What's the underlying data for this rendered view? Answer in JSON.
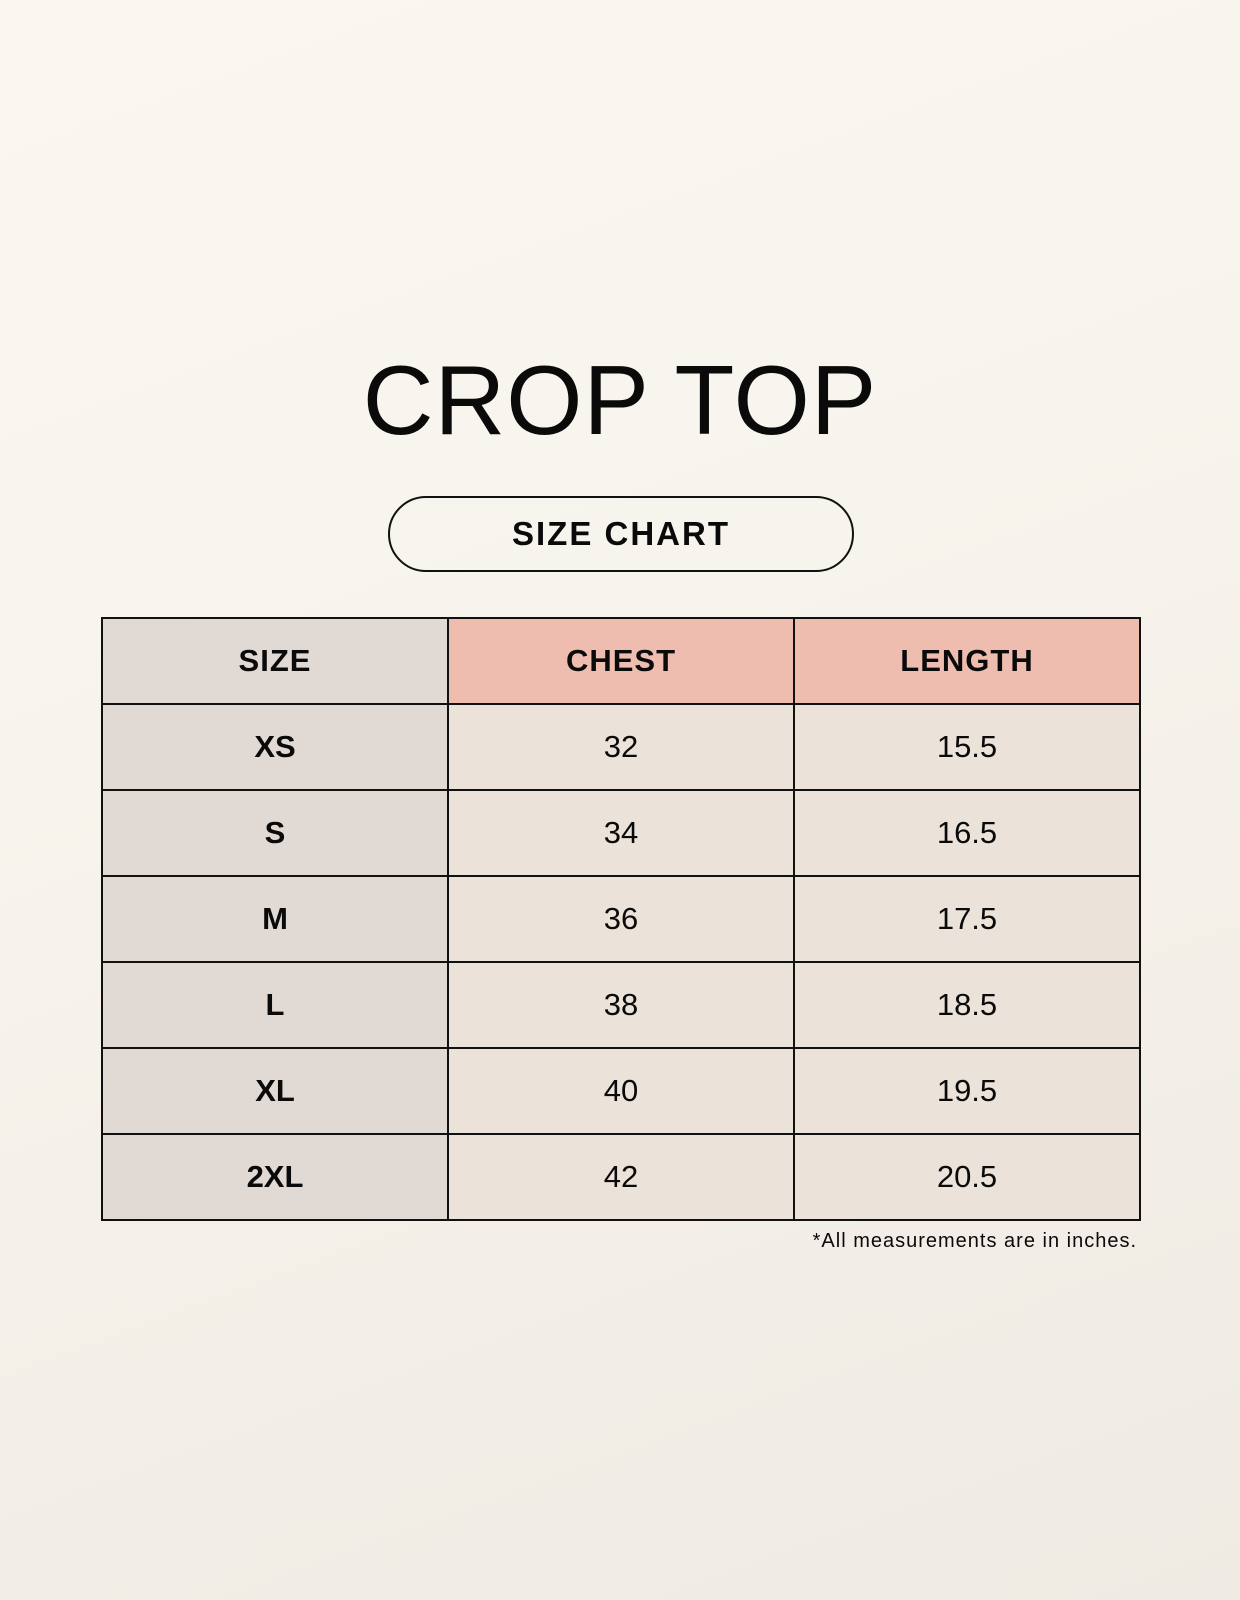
{
  "title": "CROP TOP",
  "subtitle": "SIZE CHART",
  "table": {
    "headers": [
      "SIZE",
      "CHEST",
      "LENGTH"
    ],
    "rows": [
      [
        "XS",
        "32",
        "15.5"
      ],
      [
        "S",
        "34",
        "16.5"
      ],
      [
        "M",
        "36",
        "17.5"
      ],
      [
        "L",
        "38",
        "18.5"
      ],
      [
        "XL",
        "40",
        "19.5"
      ],
      [
        "2XL",
        "42",
        "20.5"
      ]
    ]
  },
  "footnote": "*All measurements are in inches.",
  "colors": {
    "size_column": "#e1d9d3",
    "header_accent": "#eebdb0",
    "cell": "#ebe3d9"
  }
}
